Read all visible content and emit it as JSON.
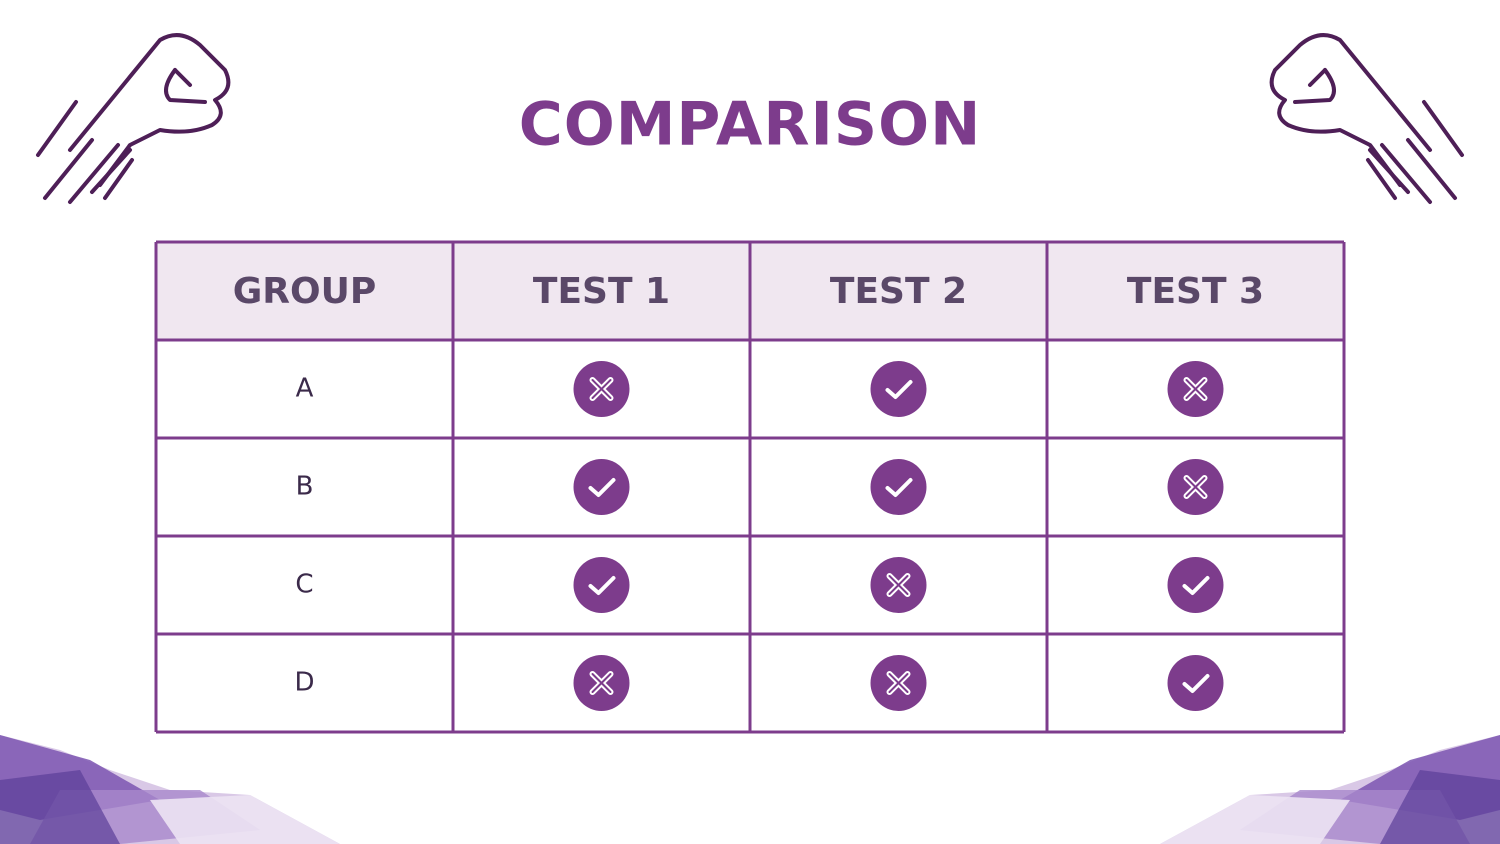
{
  "title": "COMPARISON",
  "table": {
    "header": [
      "GROUP",
      "TEST 1",
      "TEST 2",
      "TEST 3"
    ],
    "rows": [
      [
        "A",
        false,
        true,
        false
      ],
      [
        "B",
        true,
        true,
        false
      ],
      [
        "C",
        true,
        false,
        true
      ],
      [
        "D",
        false,
        false,
        true
      ]
    ]
  }
}
